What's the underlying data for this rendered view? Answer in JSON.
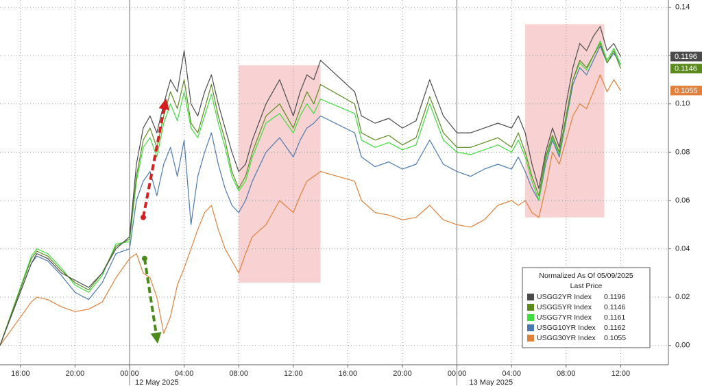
{
  "chart_data": {
    "type": "line",
    "x": [
      14.5,
      16.8,
      17.2,
      18,
      19,
      20,
      21,
      22,
      23,
      24,
      24.5,
      25,
      25.5,
      26,
      26.5,
      27,
      27.5,
      28,
      28.5,
      29,
      29.5,
      30,
      30.5,
      31,
      31.5,
      32,
      32.5,
      33,
      34,
      35,
      36,
      36.5,
      37,
      37.5,
      38,
      40.5,
      41,
      42,
      43,
      44,
      45,
      46,
      47,
      48,
      49,
      50,
      51,
      52,
      52.5,
      53,
      53.5,
      54,
      54.5,
      55,
      55.5,
      56,
      56.5,
      57,
      57.5,
      58,
      58.5,
      59,
      59.5,
      60
    ],
    "xlim": [
      14.5,
      63.5
    ],
    "xticks": [
      {
        "value": 16,
        "label": "16:00"
      },
      {
        "value": 20,
        "label": "20:00"
      },
      {
        "value": 24,
        "label": "00:00"
      },
      {
        "value": 28,
        "label": "04:00"
      },
      {
        "value": 32,
        "label": "08:00"
      },
      {
        "value": 36,
        "label": "12:00"
      },
      {
        "value": 40,
        "label": "16:00"
      },
      {
        "value": 44,
        "label": "20:00"
      },
      {
        "value": 48,
        "label": "00:00"
      },
      {
        "value": 52,
        "label": "04:00"
      },
      {
        "value": 56,
        "label": "08:00"
      },
      {
        "value": 60,
        "label": "12:00"
      }
    ],
    "date_labels": [
      {
        "value": 26,
        "label": "12 May 2025"
      },
      {
        "value": 50.5,
        "label": "13 May 2025"
      }
    ],
    "day_boundaries": [
      24,
      48
    ],
    "ylim": [
      -0.008,
      0.143
    ],
    "yticks": [
      {
        "value": 0,
        "label": "0.00"
      },
      0.02,
      0.04,
      0.06,
      0.08,
      {
        "value": 0.1,
        "label": "0.10"
      },
      0.12,
      0.14
    ],
    "grid": true,
    "shaded_regions": [
      {
        "x": [
          32,
          38
        ],
        "y": [
          0.026,
          0.116
        ]
      },
      {
        "x": [
          53,
          58.8
        ],
        "y": [
          0.053,
          0.133
        ]
      }
    ],
    "arrows": [
      {
        "color": "#d42020",
        "from": [
          25.0,
          0.053
        ],
        "to": [
          26.6,
          0.1
        ]
      },
      {
        "color": "#4a8a1a",
        "from": [
          25.1,
          0.036
        ],
        "to": [
          26.0,
          0.003
        ]
      }
    ],
    "legend": {
      "title": "Normalized As Of 05/09/2025",
      "subtitle": "Last Price",
      "position": "lower right"
    },
    "series": [
      {
        "name": "USGG2YR Index",
        "color": "#4a4a4a",
        "last": 0.1196,
        "tag": true,
        "values": [
          0,
          0.034,
          0.038,
          0.036,
          0.03,
          0.027,
          0.024,
          0.03,
          0.04,
          0.045,
          0.075,
          0.09,
          0.095,
          0.088,
          0.1,
          0.11,
          0.105,
          0.122,
          0.1,
          0.095,
          0.105,
          0.112,
          0.1,
          0.09,
          0.08,
          0.072,
          0.075,
          0.085,
          0.1,
          0.11,
          0.095,
          0.105,
          0.112,
          0.11,
          0.118,
          0.105,
          0.095,
          0.092,
          0.094,
          0.09,
          0.093,
          0.11,
          0.095,
          0.088,
          0.088,
          0.09,
          0.092,
          0.09,
          0.095,
          0.088,
          0.075,
          0.065,
          0.08,
          0.09,
          0.082,
          0.1,
          0.115,
          0.125,
          0.122,
          0.128,
          0.132,
          0.122,
          0.125,
          0.1196
        ]
      },
      {
        "name": "USGG5YR Index",
        "color": "#5a8a1e",
        "last": 0.1146,
        "tag": true,
        "values": [
          0,
          0.036,
          0.039,
          0.037,
          0.031,
          0.026,
          0.023,
          0.03,
          0.041,
          0.044,
          0.07,
          0.085,
          0.09,
          0.082,
          0.095,
          0.105,
          0.098,
          0.11,
          0.092,
          0.088,
          0.098,
          0.108,
          0.095,
          0.085,
          0.072,
          0.065,
          0.07,
          0.08,
          0.095,
          0.1,
          0.09,
          0.098,
          0.105,
          0.1,
          0.108,
          0.1,
          0.088,
          0.085,
          0.087,
          0.083,
          0.086,
          0.103,
          0.088,
          0.082,
          0.082,
          0.084,
          0.086,
          0.082,
          0.088,
          0.08,
          0.07,
          0.062,
          0.078,
          0.087,
          0.08,
          0.095,
          0.11,
          0.118,
          0.115,
          0.12,
          0.125,
          0.117,
          0.122,
          0.1146
        ]
      },
      {
        "name": "USGG7YR Index",
        "color": "#3ddc3d",
        "last": 0.1161,
        "tag": false,
        "values": [
          0,
          0.037,
          0.04,
          0.038,
          0.032,
          0.025,
          0.022,
          0.029,
          0.042,
          0.043,
          0.068,
          0.082,
          0.086,
          0.078,
          0.092,
          0.1,
          0.093,
          0.105,
          0.09,
          0.086,
          0.095,
          0.104,
          0.092,
          0.082,
          0.07,
          0.064,
          0.068,
          0.078,
          0.092,
          0.096,
          0.088,
          0.095,
          0.1,
          0.096,
          0.102,
          0.096,
          0.085,
          0.082,
          0.084,
          0.081,
          0.083,
          0.1,
          0.085,
          0.08,
          0.079,
          0.081,
          0.083,
          0.08,
          0.085,
          0.078,
          0.068,
          0.06,
          0.077,
          0.086,
          0.079,
          0.094,
          0.11,
          0.117,
          0.114,
          0.12,
          0.126,
          0.118,
          0.123,
          0.1161
        ]
      },
      {
        "name": "USGG10YR Index",
        "color": "#4a78b0",
        "last": 0.1162,
        "tag": false,
        "values": [
          0,
          0.034,
          0.037,
          0.035,
          0.029,
          0.022,
          0.019,
          0.026,
          0.038,
          0.04,
          0.06,
          0.068,
          0.072,
          0.062,
          0.075,
          0.082,
          0.07,
          0.085,
          0.05,
          0.07,
          0.08,
          0.088,
          0.075,
          0.065,
          0.058,
          0.055,
          0.06,
          0.068,
          0.08,
          0.086,
          0.078,
          0.085,
          0.09,
          0.092,
          0.095,
          0.088,
          0.078,
          0.074,
          0.076,
          0.073,
          0.075,
          0.085,
          0.075,
          0.072,
          0.07,
          0.073,
          0.075,
          0.073,
          0.078,
          0.072,
          0.065,
          0.06,
          0.075,
          0.085,
          0.078,
          0.093,
          0.108,
          0.115,
          0.112,
          0.118,
          0.124,
          0.117,
          0.121,
          0.1162
        ]
      },
      {
        "name": "USGG30YR Index",
        "color": "#e0803a",
        "last": 0.1055,
        "tag": true,
        "values": [
          0,
          0.018,
          0.02,
          0.019,
          0.016,
          0.014,
          0.015,
          0.018,
          0.028,
          0.036,
          0.038,
          0.03,
          0.028,
          0.02,
          0.005,
          0.012,
          0.025,
          0.032,
          0.04,
          0.048,
          0.055,
          0.058,
          0.048,
          0.04,
          0.035,
          0.03,
          0.038,
          0.045,
          0.05,
          0.06,
          0.055,
          0.062,
          0.068,
          0.07,
          0.072,
          0.068,
          0.06,
          0.055,
          0.054,
          0.052,
          0.053,
          0.058,
          0.052,
          0.05,
          0.049,
          0.052,
          0.058,
          0.06,
          0.058,
          0.06,
          0.055,
          0.053,
          0.065,
          0.08,
          0.075,
          0.085,
          0.095,
          0.1,
          0.098,
          0.105,
          0.112,
          0.105,
          0.11,
          0.1055
        ]
      }
    ]
  }
}
